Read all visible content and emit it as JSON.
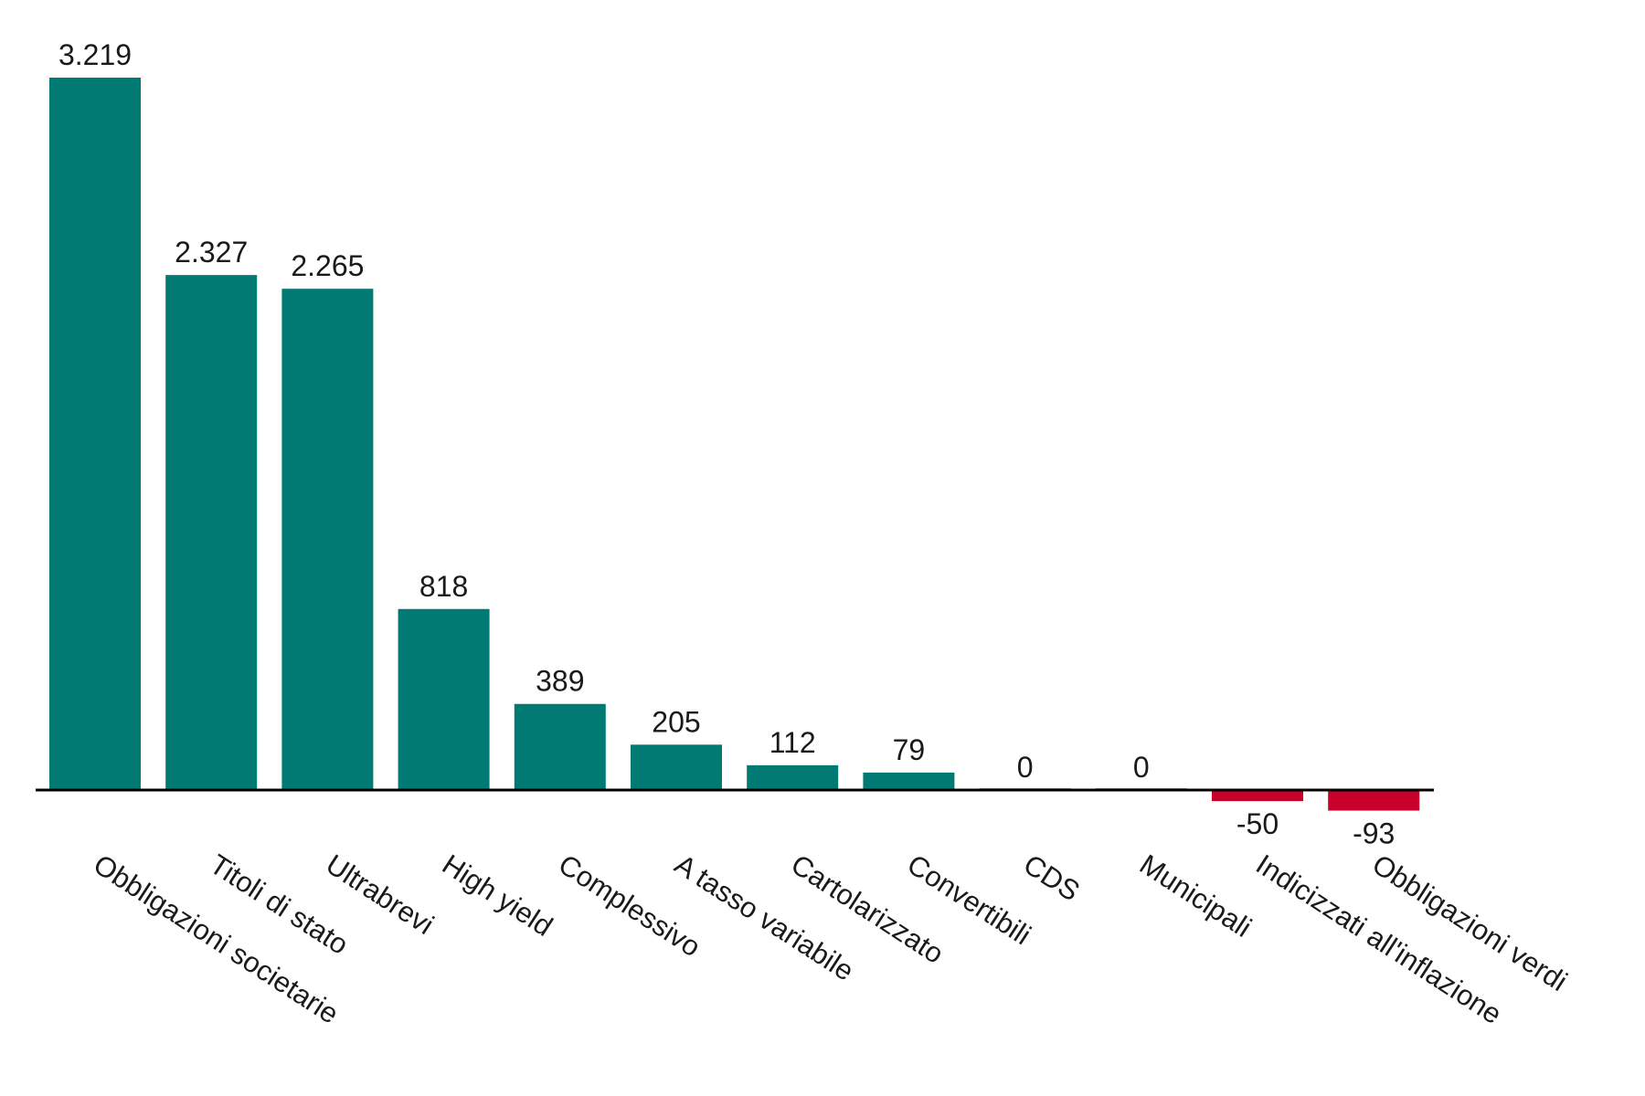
{
  "chart_data": {
    "type": "bar",
    "title": "",
    "xlabel": "",
    "ylabel": "",
    "ylim": [
      -150,
      3219
    ],
    "grid": false,
    "legend": "none",
    "categories": [
      "Obbligazioni societarie",
      "Titoli di stato",
      "Ultrabrevi",
      "High yield",
      "Complessivo",
      "A tasso variabile",
      "Cartolarizzato",
      "Convertibili",
      "CDS",
      "Municipali",
      "Indicizzati all'inflazione",
      "Obbligazioni verdi"
    ],
    "values": [
      3219,
      2327,
      2265,
      818,
      389,
      205,
      112,
      79,
      0,
      0,
      -50,
      -93
    ],
    "value_labels": [
      "3.219",
      "2.327",
      "2.265",
      "818",
      "389",
      "205",
      "112",
      "79",
      "0",
      "0",
      "-50",
      "-93"
    ],
    "colors": {
      "positive": "#007A73",
      "negative": "#C8002C",
      "zero": "#9a9a9a",
      "axis": "#000000"
    }
  }
}
